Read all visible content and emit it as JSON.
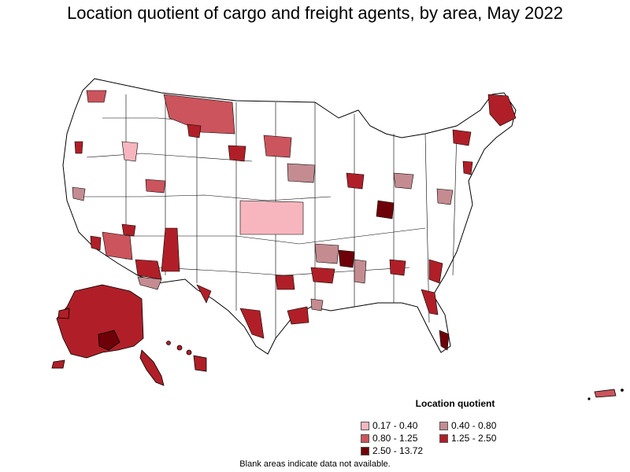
{
  "title": "Location quotient of cargo and freight agents, by area, May 2022",
  "legend": {
    "title": "Location quotient",
    "items": [
      {
        "label": "0.17 - 0.40",
        "color": "#f7b6be"
      },
      {
        "label": "0.40 - 0.80",
        "color": "#c48c90"
      },
      {
        "label": "0.80 - 1.25",
        "color": "#cc545c"
      },
      {
        "label": "1.25 - 2.50",
        "color": "#b01f27"
      },
      {
        "label": "2.50 - 13.72",
        "color": "#6e0008"
      }
    ]
  },
  "footnote": "Blank areas indicate data not available.",
  "colors": {
    "outline": "#000000",
    "no_data": "#ffffff"
  }
}
